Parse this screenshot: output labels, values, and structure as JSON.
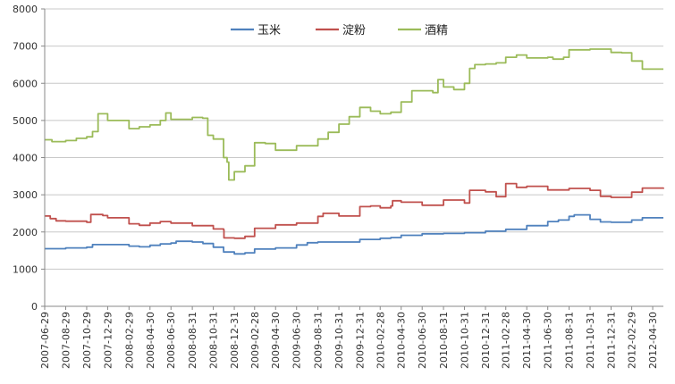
{
  "chart_data": {
    "type": "line",
    "ylim": [
      0,
      8000
    ],
    "yticks": [
      0,
      1000,
      2000,
      3000,
      4000,
      5000,
      6000,
      7000,
      8000
    ],
    "x_range": [
      "2007-06-29",
      "2012-05-31"
    ],
    "xtick_labels": [
      "2007-06-29",
      "2007-08-29",
      "2007-10-29",
      "2007-12-29",
      "2008-02-29",
      "2008-04-30",
      "2008-06-30",
      "2008-08-31",
      "2008-10-31",
      "2008-12-31",
      "2009-02-28",
      "2009-04-30",
      "2009-06-30",
      "2009-08-31",
      "2009-10-31",
      "2009-12-31",
      "2010-02-28",
      "2010-04-30",
      "2010-06-30",
      "2010-08-31",
      "2010-10-31",
      "2010-12-31",
      "2011-02-28",
      "2011-04-30",
      "2011-06-30",
      "2011-08-31",
      "2011-10-31",
      "2011-12-31",
      "2012-02-29",
      "2012-04-30"
    ],
    "grid": "horizontal",
    "legend": "top-center",
    "series": [
      {
        "name": "玉米",
        "color": "#4f81bd",
        "points": [
          [
            "2007-06-29",
            1550
          ],
          [
            "2007-08-29",
            1570
          ],
          [
            "2007-10-29",
            1590
          ],
          [
            "2007-11-15",
            1660
          ],
          [
            "2007-12-29",
            1660
          ],
          [
            "2008-02-29",
            1620
          ],
          [
            "2008-03-30",
            1600
          ],
          [
            "2008-04-30",
            1640
          ],
          [
            "2008-05-30",
            1680
          ],
          [
            "2008-06-30",
            1700
          ],
          [
            "2008-07-15",
            1750
          ],
          [
            "2008-08-31",
            1730
          ],
          [
            "2008-10-01",
            1690
          ],
          [
            "2008-10-31",
            1590
          ],
          [
            "2008-11-30",
            1460
          ],
          [
            "2008-12-31",
            1410
          ],
          [
            "2009-01-31",
            1440
          ],
          [
            "2009-02-28",
            1540
          ],
          [
            "2009-04-30",
            1570
          ],
          [
            "2009-06-30",
            1650
          ],
          [
            "2009-07-31",
            1710
          ],
          [
            "2009-08-31",
            1730
          ],
          [
            "2009-10-31",
            1730
          ],
          [
            "2009-12-31",
            1800
          ],
          [
            "2010-02-28",
            1830
          ],
          [
            "2010-03-31",
            1850
          ],
          [
            "2010-04-30",
            1910
          ],
          [
            "2010-06-30",
            1950
          ],
          [
            "2010-08-31",
            1960
          ],
          [
            "2010-10-31",
            1980
          ],
          [
            "2010-12-31",
            2020
          ],
          [
            "2011-02-28",
            2070
          ],
          [
            "2011-04-30",
            2170
          ],
          [
            "2011-06-30",
            2280
          ],
          [
            "2011-07-31",
            2320
          ],
          [
            "2011-08-31",
            2420
          ],
          [
            "2011-09-15",
            2460
          ],
          [
            "2011-10-31",
            2340
          ],
          [
            "2011-11-30",
            2270
          ],
          [
            "2011-12-31",
            2260
          ],
          [
            "2012-02-29",
            2320
          ],
          [
            "2012-03-31",
            2380
          ],
          [
            "2012-05-31",
            2380
          ]
        ]
      },
      {
        "name": "淀粉",
        "color": "#c0504d",
        "points": [
          [
            "2007-06-29",
            2430
          ],
          [
            "2007-07-15",
            2360
          ],
          [
            "2007-08-01",
            2300
          ],
          [
            "2007-08-29",
            2290
          ],
          [
            "2007-10-29",
            2260
          ],
          [
            "2007-11-10",
            2470
          ],
          [
            "2007-12-15",
            2440
          ],
          [
            "2007-12-29",
            2380
          ],
          [
            "2008-02-29",
            2220
          ],
          [
            "2008-03-30",
            2180
          ],
          [
            "2008-04-30",
            2240
          ],
          [
            "2008-05-30",
            2280
          ],
          [
            "2008-06-30",
            2240
          ],
          [
            "2008-08-31",
            2170
          ],
          [
            "2008-10-31",
            2080
          ],
          [
            "2008-11-30",
            2060
          ],
          [
            "2008-12-01",
            1840
          ],
          [
            "2008-12-31",
            1830
          ],
          [
            "2009-01-31",
            1880
          ],
          [
            "2009-02-28",
            2100
          ],
          [
            "2009-04-30",
            2190
          ],
          [
            "2009-06-30",
            2240
          ],
          [
            "2009-08-31",
            2420
          ],
          [
            "2009-09-15",
            2500
          ],
          [
            "2009-10-31",
            2430
          ],
          [
            "2009-12-31",
            2680
          ],
          [
            "2010-01-31",
            2700
          ],
          [
            "2010-02-28",
            2650
          ],
          [
            "2010-03-31",
            2700
          ],
          [
            "2010-04-05",
            2840
          ],
          [
            "2010-04-30",
            2800
          ],
          [
            "2010-06-30",
            2720
          ],
          [
            "2010-08-31",
            2860
          ],
          [
            "2010-10-31",
            2780
          ],
          [
            "2010-11-15",
            3120
          ],
          [
            "2010-12-31",
            3080
          ],
          [
            "2011-01-31",
            2950
          ],
          [
            "2011-02-28",
            3300
          ],
          [
            "2011-03-31",
            3200
          ],
          [
            "2011-04-30",
            3230
          ],
          [
            "2011-06-30",
            3130
          ],
          [
            "2011-08-31",
            3170
          ],
          [
            "2011-10-31",
            3120
          ],
          [
            "2011-11-30",
            2960
          ],
          [
            "2011-12-31",
            2930
          ],
          [
            "2012-02-29",
            3070
          ],
          [
            "2012-03-31",
            3180
          ],
          [
            "2012-05-31",
            3160
          ]
        ]
      },
      {
        "name": "酒精",
        "color": "#9bbb59",
        "points": [
          [
            "2007-06-29",
            4480
          ],
          [
            "2007-07-20",
            4430
          ],
          [
            "2007-08-29",
            4460
          ],
          [
            "2007-09-29",
            4520
          ],
          [
            "2007-10-29",
            4560
          ],
          [
            "2007-11-15",
            4700
          ],
          [
            "2007-12-01",
            5180
          ],
          [
            "2007-12-29",
            5000
          ],
          [
            "2008-02-29",
            4780
          ],
          [
            "2008-03-30",
            4830
          ],
          [
            "2008-04-30",
            4880
          ],
          [
            "2008-05-30",
            5000
          ],
          [
            "2008-06-15",
            5200
          ],
          [
            "2008-06-30",
            5030
          ],
          [
            "2008-08-31",
            5080
          ],
          [
            "2008-09-30",
            5060
          ],
          [
            "2008-10-15",
            4600
          ],
          [
            "2008-10-31",
            4500
          ],
          [
            "2008-11-30",
            4000
          ],
          [
            "2008-12-10",
            3880
          ],
          [
            "2008-12-15",
            3400
          ],
          [
            "2008-12-31",
            3620
          ],
          [
            "2009-01-31",
            3780
          ],
          [
            "2009-02-28",
            4400
          ],
          [
            "2009-03-31",
            4380
          ],
          [
            "2009-04-30",
            4200
          ],
          [
            "2009-06-30",
            4320
          ],
          [
            "2009-08-31",
            4500
          ],
          [
            "2009-09-30",
            4680
          ],
          [
            "2009-10-31",
            4900
          ],
          [
            "2009-11-30",
            5100
          ],
          [
            "2009-12-31",
            5350
          ],
          [
            "2010-01-31",
            5250
          ],
          [
            "2010-02-28",
            5180
          ],
          [
            "2010-03-31",
            5220
          ],
          [
            "2010-04-30",
            5500
          ],
          [
            "2010-05-31",
            5800
          ],
          [
            "2010-06-30",
            5800
          ],
          [
            "2010-07-31",
            5750
          ],
          [
            "2010-08-15",
            6100
          ],
          [
            "2010-08-31",
            5900
          ],
          [
            "2010-09-30",
            5830
          ],
          [
            "2010-10-31",
            6000
          ],
          [
            "2010-11-15",
            6400
          ],
          [
            "2010-11-30",
            6500
          ],
          [
            "2010-12-31",
            6520
          ],
          [
            "2011-01-31",
            6550
          ],
          [
            "2011-02-28",
            6700
          ],
          [
            "2011-03-31",
            6760
          ],
          [
            "2011-04-30",
            6680
          ],
          [
            "2011-06-30",
            6700
          ],
          [
            "2011-07-15",
            6650
          ],
          [
            "2011-08-15",
            6700
          ],
          [
            "2011-08-31",
            6900
          ],
          [
            "2011-10-31",
            6920
          ],
          [
            "2011-12-31",
            6830
          ],
          [
            "2012-01-31",
            6820
          ],
          [
            "2012-02-29",
            6600
          ],
          [
            "2012-03-31",
            6380
          ],
          [
            "2012-05-31",
            6380
          ]
        ]
      }
    ]
  }
}
